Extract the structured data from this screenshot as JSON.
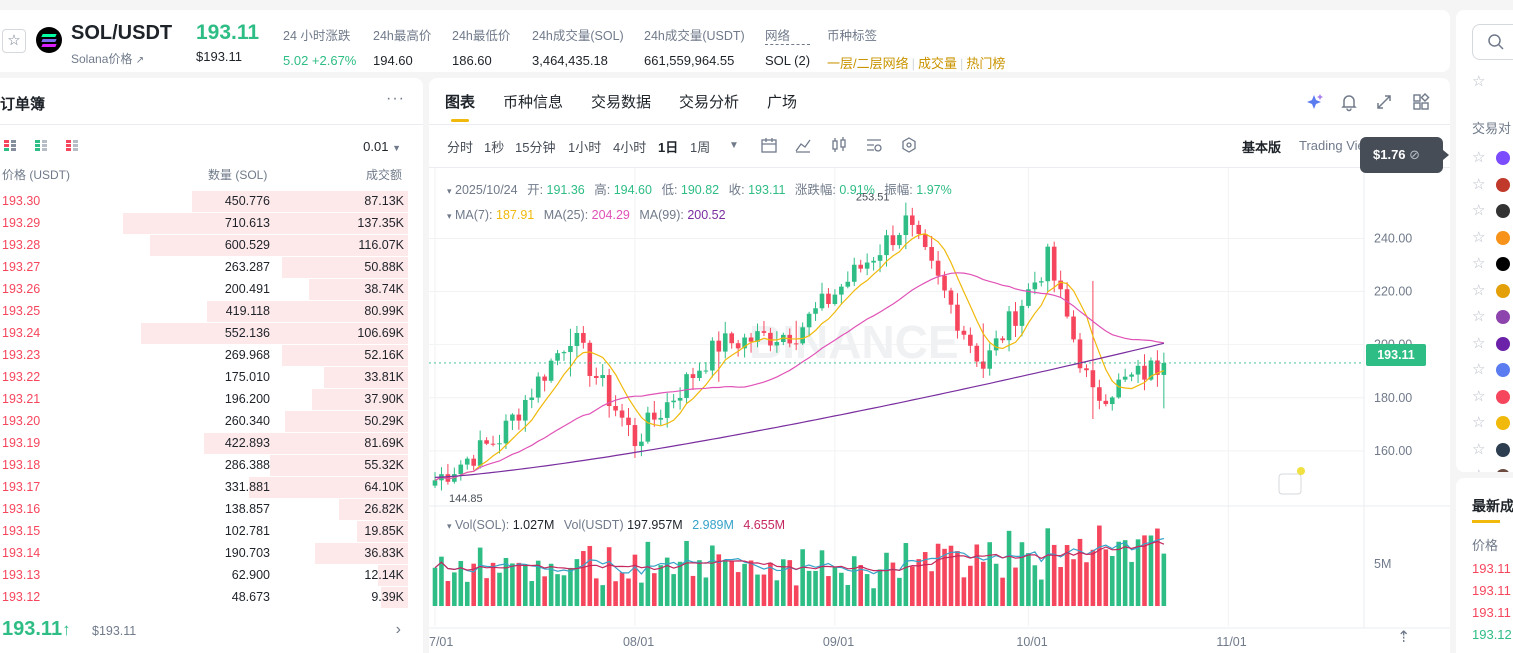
{
  "header": {
    "pair": "SOL/USDT",
    "subtitle": "Solana价格",
    "subtitle_arrow": "↗",
    "price": "193.11",
    "price_usd": "$193.11",
    "stats": [
      {
        "label": "24 小时涨跌",
        "value": "5.02 +2.67%"
      },
      {
        "label": "24h最高价",
        "value": "194.60"
      },
      {
        "label": "24h最低价",
        "value": "186.60"
      },
      {
        "label": "24h成交量(SOL)",
        "value": "3,464,435.18"
      },
      {
        "label": "24h成交量(USDT)",
        "value": "661,559,964.55"
      },
      {
        "label": "网络",
        "value": "SOL (2)"
      }
    ],
    "tags_label": "币种标签",
    "tags": [
      "一层/二层网络",
      "成交量",
      "热门榜"
    ]
  },
  "orderbook": {
    "title": "订单簿",
    "more": "···",
    "tick": "0.01",
    "columns": [
      "价格 (USDT)",
      "数量 (SOL)",
      "成交额"
    ],
    "rows": [
      {
        "price": "193.30",
        "amount": "450.776",
        "total": "87.13K",
        "depth": 0.72
      },
      {
        "price": "193.29",
        "amount": "710.613",
        "total": "137.35K",
        "depth": 0.95
      },
      {
        "price": "193.28",
        "amount": "600.529",
        "total": "116.07K",
        "depth": 0.86
      },
      {
        "price": "193.27",
        "amount": "263.287",
        "total": "50.88K",
        "depth": 0.42
      },
      {
        "price": "193.26",
        "amount": "200.491",
        "total": "38.74K",
        "depth": 0.33
      },
      {
        "price": "193.25",
        "amount": "419.118",
        "total": "80.99K",
        "depth": 0.67
      },
      {
        "price": "193.24",
        "amount": "552.136",
        "total": "106.69K",
        "depth": 0.89
      },
      {
        "price": "193.23",
        "amount": "269.968",
        "total": "52.16K",
        "depth": 0.42
      },
      {
        "price": "193.22",
        "amount": "175.010",
        "total": "33.81K",
        "depth": 0.28
      },
      {
        "price": "193.21",
        "amount": "196.200",
        "total": "37.90K",
        "depth": 0.32
      },
      {
        "price": "193.20",
        "amount": "260.340",
        "total": "50.29K",
        "depth": 0.41
      },
      {
        "price": "193.19",
        "amount": "422.893",
        "total": "81.69K",
        "depth": 0.68
      },
      {
        "price": "193.18",
        "amount": "286.388",
        "total": "55.32K",
        "depth": 0.46
      },
      {
        "price": "193.17",
        "amount": "331.881",
        "total": "64.10K",
        "depth": 0.53
      },
      {
        "price": "193.16",
        "amount": "138.857",
        "total": "26.82K",
        "depth": 0.23
      },
      {
        "price": "193.15",
        "amount": "102.781",
        "total": "19.85K",
        "depth": 0.17
      },
      {
        "price": "193.14",
        "amount": "190.703",
        "total": "36.83K",
        "depth": 0.31
      },
      {
        "price": "193.13",
        "amount": "62.900",
        "total": "12.14K",
        "depth": 0.1
      },
      {
        "price": "193.12",
        "amount": "48.673",
        "total": "9.39K",
        "depth": 0.09
      }
    ],
    "mid_price": "193.11",
    "mid_arrow": "↑",
    "mid_usd": "$193.11",
    "chevron": "›"
  },
  "chart": {
    "tabs": [
      "图表",
      "币种信息",
      "交易数据",
      "交易分析",
      "广场"
    ],
    "intervals": [
      "分时",
      "1秒",
      "15分钟",
      "1小时",
      "4小时",
      "1日",
      "1周"
    ],
    "active_interval": "1日",
    "version_basic": "基本版",
    "version_tv": "Trading View",
    "tooltip": "$1.76",
    "ohlc": {
      "date": "2025/10/24",
      "open_label": "开:",
      "open": "191.36",
      "high_label": "高:",
      "high": "194.60",
      "low_label": "低:",
      "low": "190.82",
      "close_label": "收:",
      "close": "193.11",
      "chg_label": "涨跌幅:",
      "chg": "0.91%",
      "amp_label": "振幅:",
      "amp": "1.97%"
    },
    "ma": {
      "ma7_label": "MA(7):",
      "ma7": "187.91",
      "ma25_label": "MA(25):",
      "ma25": "204.29",
      "ma99_label": "MA(99):",
      "ma99": "200.52"
    },
    "vol": {
      "sol_label": "Vol(SOL):",
      "sol": "1.027M",
      "usdt_label": "Vol(USDT)",
      "usdt": "197.957M",
      "ma1": "2.989M",
      "ma2": "4.655M"
    },
    "current_price_badge": "193.11",
    "watermark": "BINANCE",
    "colors": {
      "up": "#2ebd85",
      "down": "#f6465d",
      "ma7": "#f0b90b",
      "ma25": "#e052b6",
      "ma99": "#7a2e9f"
    }
  },
  "chart_data": {
    "type": "candlestick",
    "title": "SOL/USDT 1日",
    "y_ticks": [
      160,
      180,
      200,
      220,
      240
    ],
    "y_tick_labels": [
      "160.00",
      "180.00",
      "200.00",
      "220.00",
      "240.00"
    ],
    "ylim": [
      143,
      259
    ],
    "x_ticks": [
      "7/01",
      "08/01",
      "09/01",
      "10/01",
      "11/01"
    ],
    "high_label": "253.51",
    "low_label": "144.85",
    "vol_tick": "5M",
    "x_tick_index": [
      0,
      31,
      62,
      92,
      123
    ],
    "ohlc_samples": [
      {
        "day": 0,
        "o": 150,
        "h": 152,
        "l": 146,
        "c": 149
      },
      {
        "day": 10,
        "o": 160,
        "h": 166,
        "l": 159,
        "c": 165
      },
      {
        "day": 21,
        "o": 190,
        "h": 206,
        "l": 188,
        "c": 204
      },
      {
        "day": 31,
        "o": 166,
        "h": 170,
        "l": 162,
        "c": 164
      },
      {
        "day": 44,
        "o": 188,
        "h": 205,
        "l": 186,
        "c": 200
      },
      {
        "day": 56,
        "o": 201,
        "h": 209,
        "l": 198,
        "c": 205
      },
      {
        "day": 73,
        "o": 240,
        "h": 253.51,
        "l": 236,
        "c": 246
      },
      {
        "day": 85,
        "o": 205,
        "h": 208,
        "l": 190,
        "c": 192
      },
      {
        "day": 95,
        "o": 224,
        "h": 238,
        "l": 220,
        "c": 232
      },
      {
        "day": 102,
        "o": 222,
        "h": 224,
        "l": 172,
        "c": 180
      },
      {
        "day": 113,
        "o": 182,
        "h": 194.6,
        "l": 176,
        "c": 193.11
      }
    ]
  },
  "right_panel": {
    "pairs_label": "交易对",
    "latest_label": "最新成交",
    "price_label": "价格",
    "prices": [
      "193.11",
      "193.11",
      "193.11",
      "193.12"
    ]
  }
}
